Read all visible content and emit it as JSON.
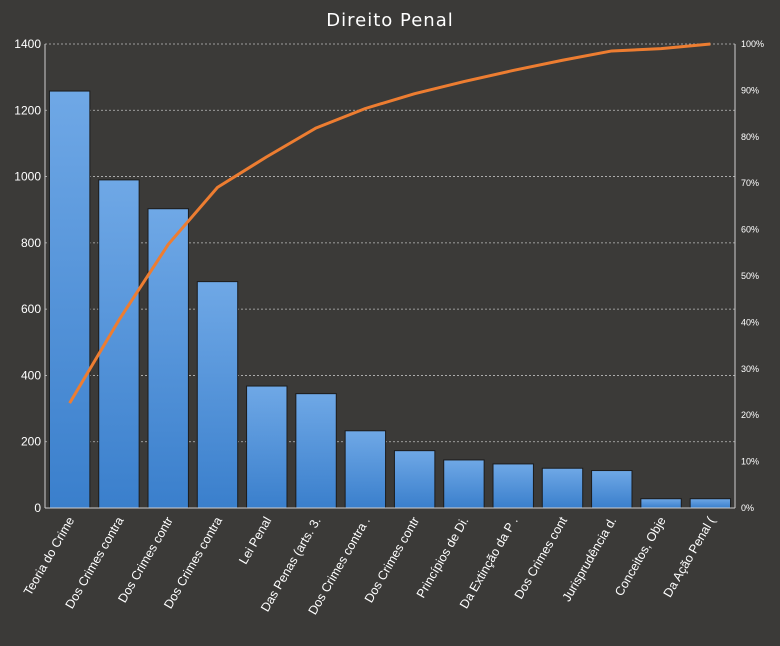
{
  "chart_data": {
    "type": "bar",
    "title": "Direito Penal",
    "categories": [
      "Teoria do Crime",
      "Dos Crimes contra",
      "Dos Crimes contr",
      "Dos Crimes contra",
      "Lei Penal",
      "Das Penas (arts. 3.",
      "Dos Crimes contra .",
      "Dos Crimes contr",
      "Princípios de Di.",
      "Da Extinção da P .",
      "Dos Crimes cont",
      "Jurisprudência d.",
      "Conceitos, Obje",
      "Da Ação Penal ("
    ],
    "series": [
      {
        "values": [
          1258,
          990,
          903,
          683,
          368,
          345,
          233,
          173,
          145,
          133,
          120,
          113,
          28,
          28
        ]
      },
      {
        "values": [
          22.6,
          40.5,
          56.8,
          69.1,
          75.7,
          81.9,
          86.1,
          89.3,
          91.9,
          94.3,
          96.5,
          98.5,
          99.0,
          100.0
        ]
      }
    ],
    "ylim": [
      0,
      1400
    ],
    "yticks": [
      0,
      200,
      400,
      600,
      800,
      1000,
      1200,
      1400
    ],
    "y2lim": [
      0,
      100
    ],
    "y2ticks": [
      "0%",
      "10%",
      "20%",
      "30%",
      "40%",
      "50%",
      "60%",
      "70%",
      "80%",
      "90%",
      "100%"
    ],
    "grid": true,
    "colors": {
      "background": "#3b3a38",
      "bar_top": "#6fa8e6",
      "bar_bottom": "#3a7fcc",
      "line": "#ed7d31",
      "text": "#ffffff"
    }
  }
}
